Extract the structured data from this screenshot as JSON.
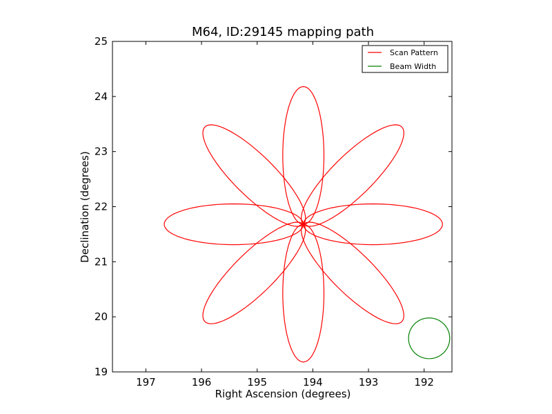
{
  "chart_data": {
    "type": "line",
    "title": "M64, ID:29145 mapping path",
    "xlabel": "Right Ascension (degrees)",
    "ylabel": "Declination (degrees)",
    "xlim": [
      197.6,
      191.5
    ],
    "ylim": [
      19,
      25
    ],
    "x_ticks": [
      "197",
      "196",
      "195",
      "194",
      "193",
      "192"
    ],
    "y_ticks": [
      "19",
      "20",
      "21",
      "22",
      "23",
      "24",
      "25"
    ],
    "x_tick_values": [
      197,
      196,
      195,
      194,
      193,
      192
    ],
    "y_tick_values": [
      19,
      20,
      21,
      22,
      23,
      24,
      25
    ],
    "grid": false,
    "legend_position": "top-right",
    "series": [
      {
        "name": "Scan Pattern",
        "color": "#ff0000",
        "kind": "rose",
        "center": [
          194.17,
          21.68
        ],
        "petals": 8,
        "length_deg": 2.5,
        "half_width_deg": 0.37
      },
      {
        "name": "Beam Width",
        "color": "#008000",
        "kind": "circle",
        "center": [
          191.91,
          19.61
        ],
        "radius_deg": 0.37
      }
    ]
  }
}
